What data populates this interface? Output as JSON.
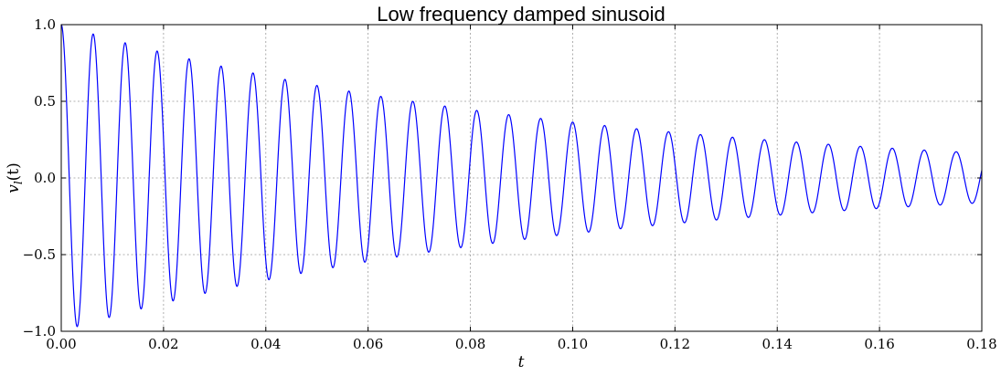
{
  "chart_data": {
    "type": "line",
    "title": "Low frequency damped sinusoid",
    "xlabel": "t",
    "ylabel": "v_l(t)",
    "ylabel_main": "v",
    "ylabel_sub": "l",
    "ylabel_suffix": "(t)",
    "xlim": [
      0.0,
      0.18
    ],
    "ylim": [
      -1.0,
      1.0
    ],
    "grid": true,
    "x_ticks": [
      0.0,
      0.02,
      0.04,
      0.06,
      0.08,
      0.1,
      0.12,
      0.14,
      0.16,
      0.18
    ],
    "x_tick_labels": [
      "0.00",
      "0.02",
      "0.04",
      "0.06",
      "0.08",
      "0.10",
      "0.12",
      "0.14",
      "0.16",
      "0.18"
    ],
    "y_ticks": [
      -1.0,
      -0.5,
      0.0,
      0.5,
      1.0
    ],
    "y_tick_labels": [
      "−1.0",
      "−0.5",
      "0.0",
      "0.5",
      "1.0"
    ],
    "series": [
      {
        "color": "#0000ff",
        "model": "damped_cosine",
        "amplitude": 1.0,
        "frequency_hz": 160,
        "decay_rate_per_s": 10.1,
        "t_start": 0.0,
        "t_end": 0.18,
        "samples": 3600
      }
    ]
  }
}
